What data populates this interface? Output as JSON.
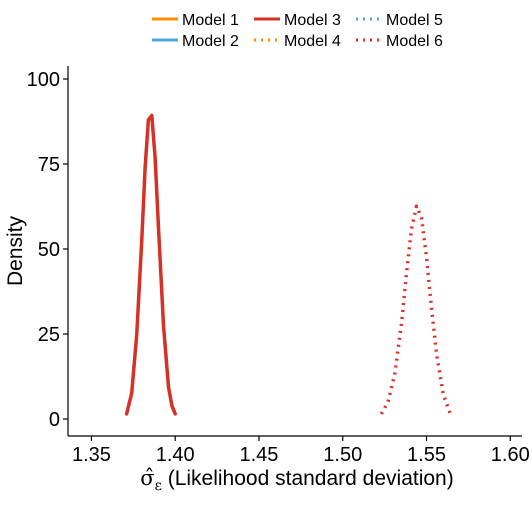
{
  "chart_data": {
    "type": "line",
    "title": "",
    "xlabel": "σ̂ε (Likelihood standard deviation)",
    "xlabel_symbol": "σ̂",
    "xlabel_subscript": "ε",
    "xlabel_text": " (Likelihood standard deviation)",
    "ylabel": "Density",
    "xlim": [
      1.336,
      1.607
    ],
    "ylim": [
      0,
      100
    ],
    "xticks": [
      "1.35",
      "1.40",
      "1.45",
      "1.50",
      "1.55",
      "1.60"
    ],
    "yticks": [
      "0",
      "25",
      "50",
      "75",
      "100"
    ],
    "grid": false,
    "legend_position": "top",
    "legend": [
      {
        "name": "Model 1",
        "color": "#FF8C00",
        "dash": "solid"
      },
      {
        "name": "Model 3",
        "color": "#D73027",
        "dash": "solid"
      },
      {
        "name": "Model 5",
        "color": "#4DA6D9",
        "dash": "dotted"
      },
      {
        "name": "Model 2",
        "color": "#4DA6D9",
        "dash": "solid"
      },
      {
        "name": "Model 4",
        "color": "#FF8C00",
        "dash": "dotted"
      },
      {
        "name": "Model 6",
        "color": "#D73027",
        "dash": "dotted"
      }
    ],
    "series": [
      {
        "name": "Model 3",
        "color": "#D73027",
        "dash": "solid",
        "x": [
          1.371,
          1.374,
          1.377,
          1.38,
          1.382,
          1.384,
          1.386,
          1.388,
          1.39,
          1.393,
          1.396,
          1.398,
          1.4
        ],
        "y": [
          1.5,
          7.6,
          24.7,
          52.2,
          73.9,
          88.0,
          89.3,
          76.9,
          56.2,
          27.5,
          9.4,
          3.9,
          1.5
        ]
      },
      {
        "name": "Model 6",
        "color": "#D73027",
        "dash": "dotted",
        "x": [
          1.523,
          1.527,
          1.531,
          1.535,
          1.538,
          1.541,
          1.544,
          1.547,
          1.55,
          1.553,
          1.556,
          1.56,
          1.564
        ],
        "y": [
          1.5,
          5.0,
          13.1,
          27.8,
          42.5,
          55.7,
          62.6,
          59.2,
          47.6,
          32.7,
          19.1,
          7.2,
          1.8
        ]
      }
    ]
  }
}
